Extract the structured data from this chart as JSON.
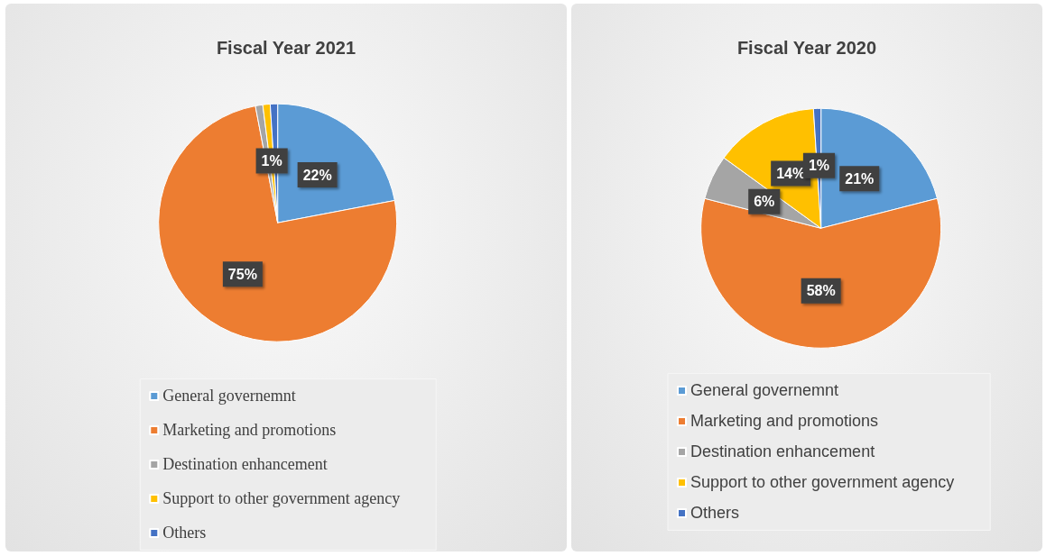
{
  "chart_data": [
    {
      "type": "pie",
      "title": "Fiscal Year 2021",
      "categories": [
        "General governemnt",
        "Marketing and promotions",
        "Destination enhancement",
        "Support to other government agency",
        "Others"
      ],
      "values": [
        22,
        75,
        1,
        1,
        1
      ],
      "colors": [
        "#5b9bd5",
        "#ed7d31",
        "#a5a5a5",
        "#ffc000",
        "#4472c4"
      ],
      "value_labels": [
        "22%",
        "75%",
        null,
        "1%",
        null
      ],
      "legend": "bottom"
    },
    {
      "type": "pie",
      "title": "Fiscal Year 2020",
      "categories": [
        "General governemnt",
        "Marketing and promotions",
        "Destination enhancement",
        "Support to other government agency",
        "Others"
      ],
      "values": [
        21,
        58,
        6,
        14,
        1
      ],
      "colors": [
        "#5b9bd5",
        "#ed7d31",
        "#a5a5a5",
        "#ffc000",
        "#4472c4"
      ],
      "value_labels": [
        "21%",
        "58%",
        "6%",
        "14%",
        "1%"
      ],
      "legend": "bottom"
    }
  ]
}
